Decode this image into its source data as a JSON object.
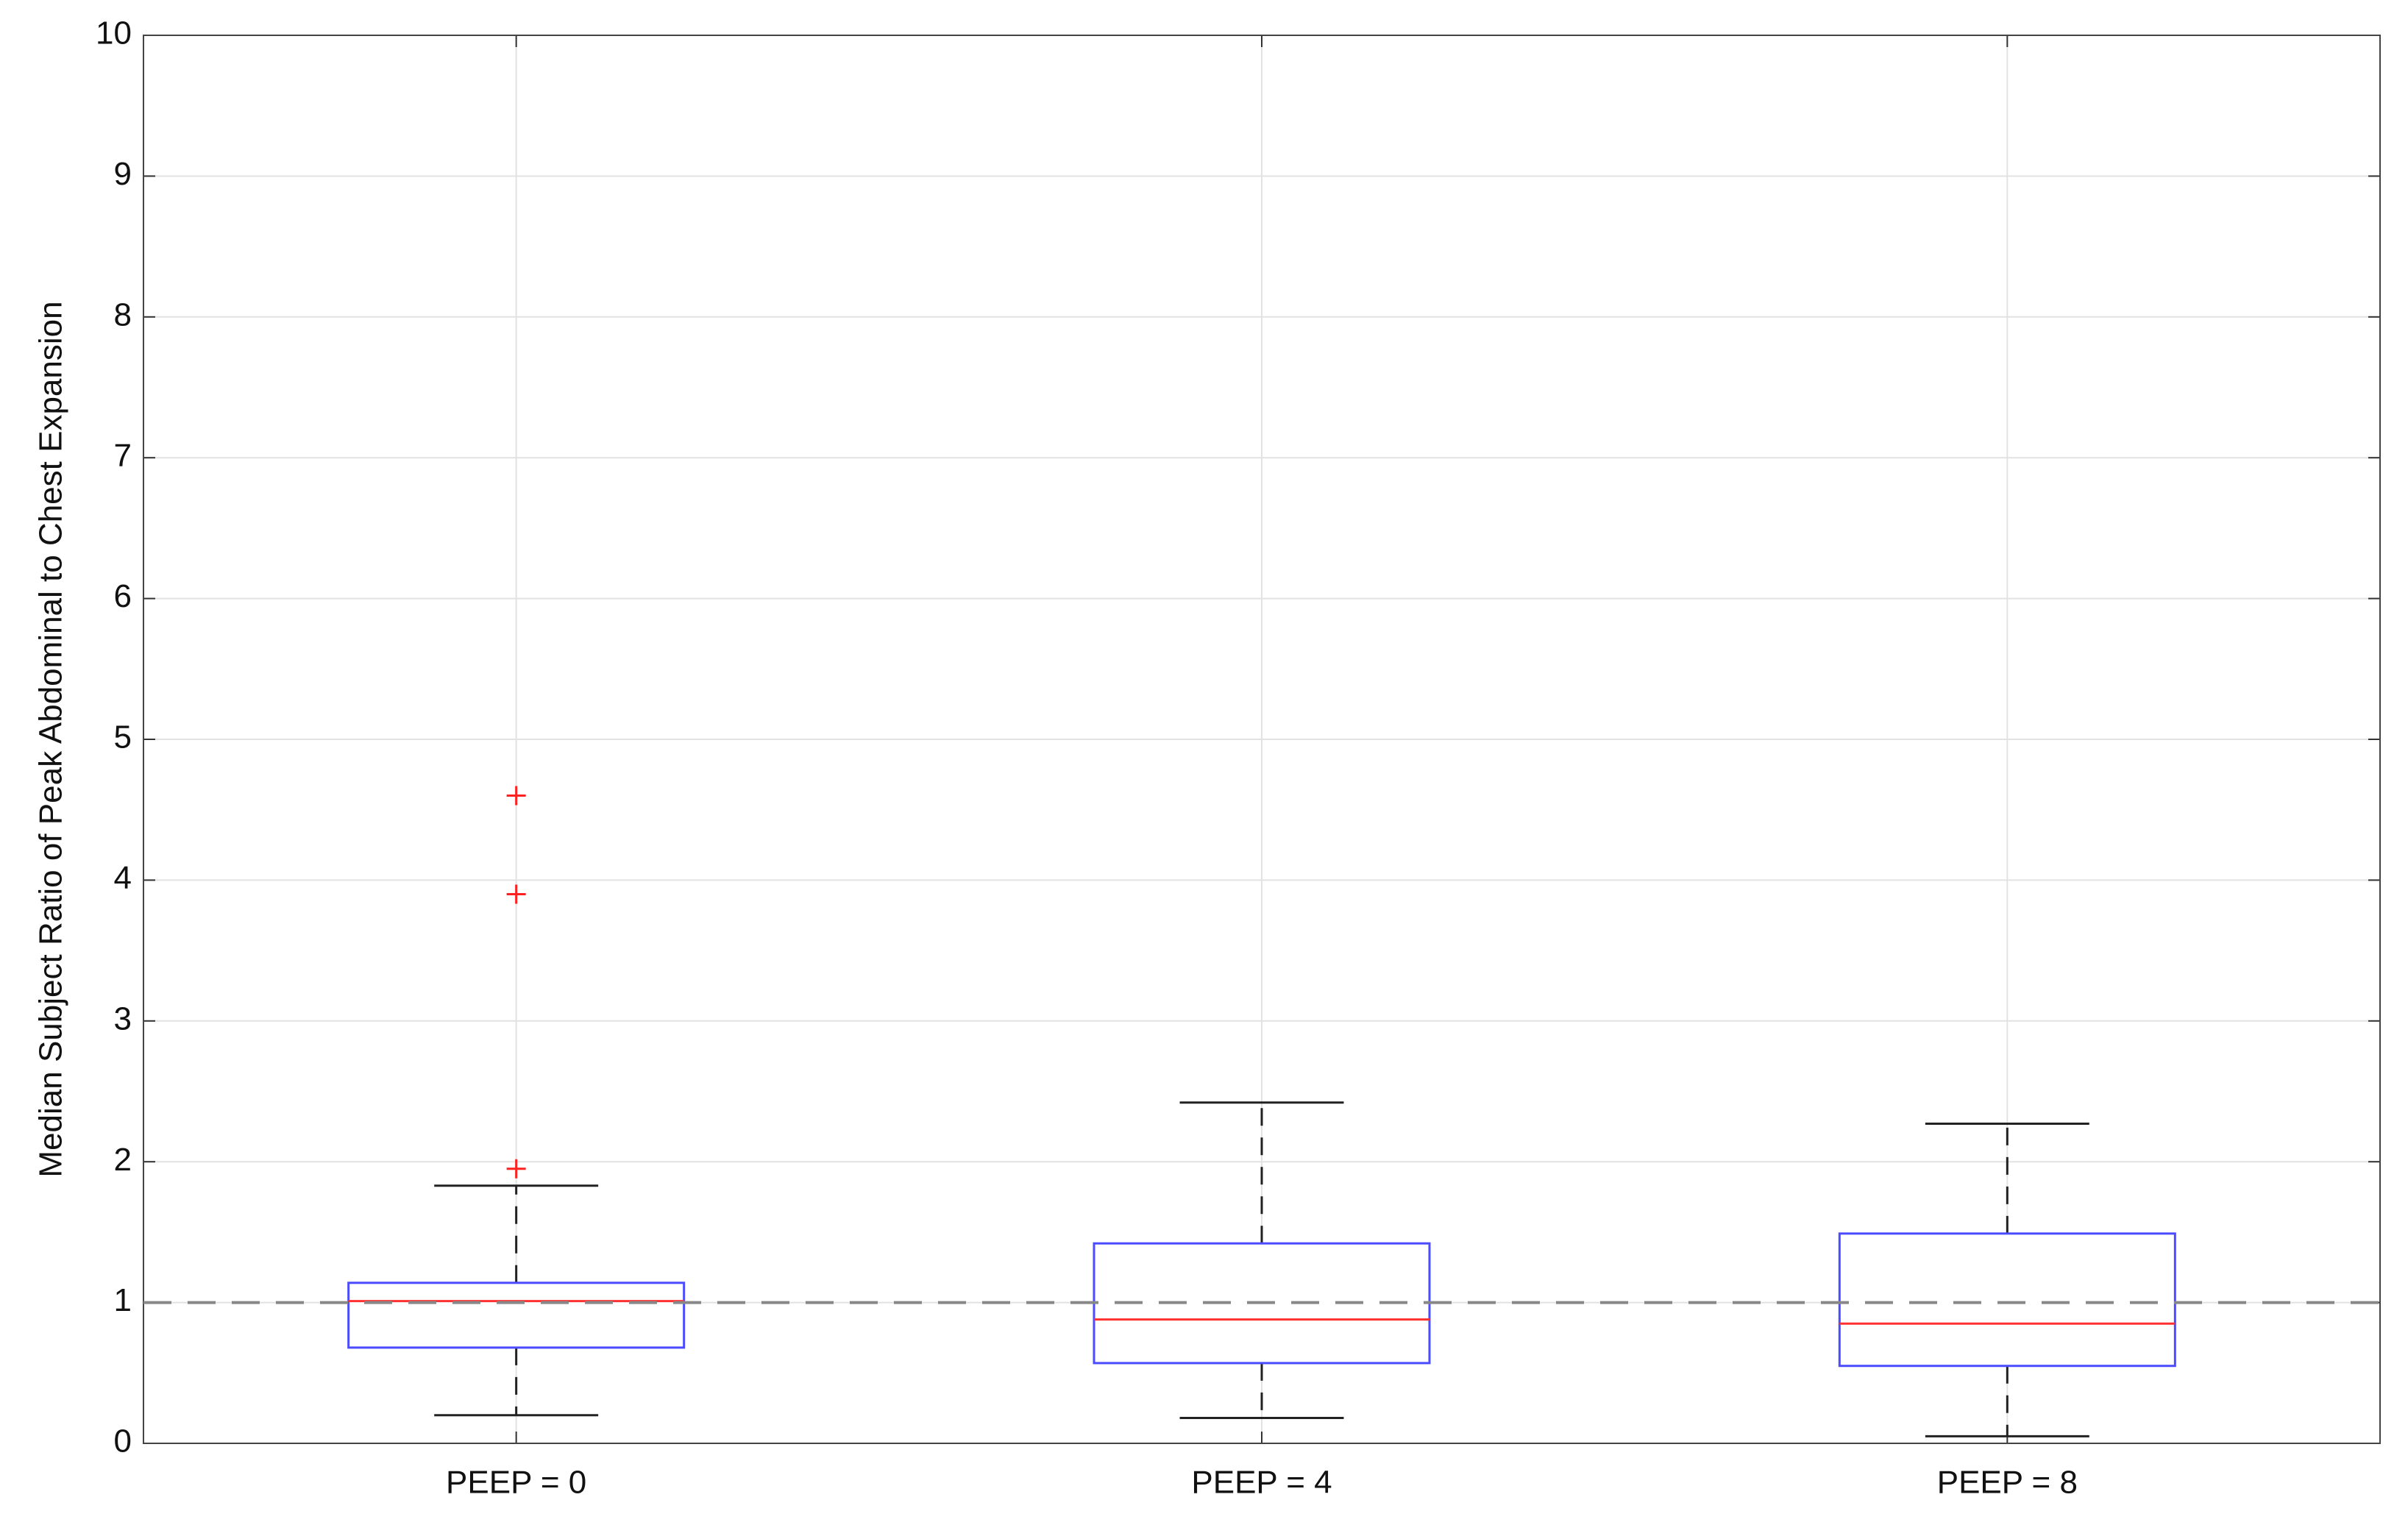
{
  "chart_data": {
    "type": "box",
    "y_label": "Median Subject Ratio of Peak Abdominal to Chest Expansion",
    "categories": [
      "PEEP = 0",
      "PEEP = 4",
      "PEEP = 8"
    ],
    "boxes": [
      {
        "whisker_low": 0.2,
        "q1": 0.68,
        "median": 1.01,
        "q3": 1.14,
        "whisker_high": 1.83,
        "outliers": [
          1.95,
          3.9,
          4.6
        ]
      },
      {
        "whisker_low": 0.18,
        "q1": 0.57,
        "median": 0.88,
        "q3": 1.42,
        "whisker_high": 2.42,
        "outliers": []
      },
      {
        "whisker_low": 0.05,
        "q1": 0.55,
        "median": 0.85,
        "q3": 1.49,
        "whisker_high": 2.27,
        "outliers": []
      }
    ],
    "box_color": "#4b4bff",
    "median_color": "#ff3030",
    "whisker_color": "#222222",
    "outlier_color": "#ff2020",
    "reference_line": 1,
    "ylim": [
      0,
      10
    ],
    "yticks": [
      0,
      1,
      2,
      3,
      4,
      5,
      6,
      7,
      8,
      9,
      10
    ],
    "grid": true
  }
}
